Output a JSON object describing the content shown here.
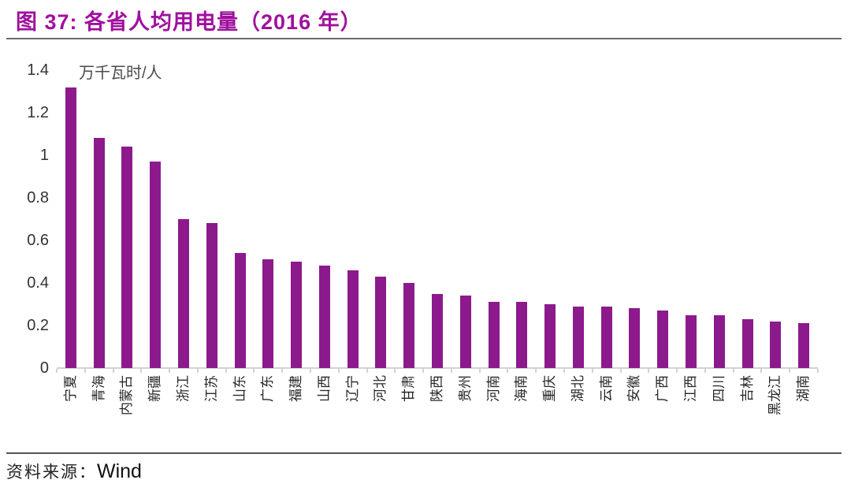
{
  "title": "图 37:  各省人均用电量（2016 年）",
  "source": {
    "prefix": "资料来源：",
    "name": "Wind"
  },
  "colors": {
    "title_text": "#A0109E",
    "bar": "#8C1A8C",
    "top_rule": "#6a6a6a",
    "bottom_rule": "#555555",
    "axis_line": "#d2d2d2",
    "tick_text": "#333333",
    "xlabel_text": "#262626"
  },
  "chart_data": {
    "type": "bar",
    "title": "各省人均用电量（2016 年）",
    "unit_label": "万千瓦时/人",
    "xlabel": "",
    "ylabel": "万千瓦时/人",
    "ylim": [
      0,
      1.4
    ],
    "grid": false,
    "legend": "none",
    "bar_color": "#8C1A8C",
    "yticks": [
      {
        "label": "1.4",
        "v": 1.4
      },
      {
        "label": "1.2",
        "v": 1.2
      },
      {
        "label": "1",
        "v": 1.0
      },
      {
        "label": "0.8",
        "v": 0.8
      },
      {
        "label": "0.6",
        "v": 0.6
      },
      {
        "label": "0.4",
        "v": 0.4
      },
      {
        "label": "0.2",
        "v": 0.2
      },
      {
        "label": "0",
        "v": 0.0
      }
    ],
    "categories": [
      "宁夏",
      "青海",
      "内蒙古",
      "新疆",
      "浙江",
      "江苏",
      "山东",
      "广东",
      "福建",
      "山西",
      "辽宁",
      "河北",
      "甘肃",
      "陕西",
      "贵州",
      "河南",
      "海南",
      "重庆",
      "湖北",
      "云南",
      "安徽",
      "广西",
      "江西",
      "四川",
      "吉林",
      "黑龙江",
      "湖南"
    ],
    "values": [
      1.32,
      1.08,
      1.04,
      0.97,
      0.7,
      0.68,
      0.54,
      0.51,
      0.5,
      0.48,
      0.46,
      0.43,
      0.4,
      0.35,
      0.34,
      0.31,
      0.31,
      0.3,
      0.29,
      0.29,
      0.28,
      0.27,
      0.25,
      0.25,
      0.23,
      0.22,
      0.21
    ]
  }
}
